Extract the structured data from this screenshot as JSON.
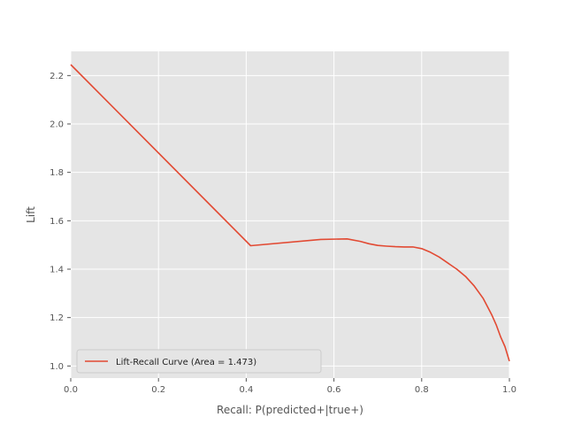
{
  "chart_data": {
    "type": "line",
    "title": "",
    "xlabel": "Recall: P(predicted+|true+)",
    "ylabel": "Lift",
    "xlim": [
      0.0,
      1.0
    ],
    "ylim": [
      0.95,
      2.3
    ],
    "xticks": [
      0.0,
      0.2,
      0.4,
      0.6,
      0.8,
      1.0
    ],
    "xtick_labels": [
      "0.0",
      "0.2",
      "0.4",
      "0.6",
      "0.8",
      "1.0"
    ],
    "yticks": [
      1.0,
      1.2,
      1.4,
      1.6,
      1.8,
      2.0,
      2.2
    ],
    "ytick_labels": [
      "1.0",
      "1.2",
      "1.4",
      "1.6",
      "1.8",
      "2.0",
      "2.2"
    ],
    "grid": true,
    "legend_position": "lower-left",
    "colors": {
      "background": "#E5E5E5",
      "grid": "#FFFFFF",
      "line": "#E24A33"
    },
    "series": [
      {
        "name": "Lift-Recall Curve  (Area = 1.473)",
        "x": [
          0.0,
          0.41,
          0.57,
          0.63,
          0.66,
          0.68,
          0.7,
          0.72,
          0.74,
          0.76,
          0.78,
          0.8,
          0.82,
          0.84,
          0.86,
          0.88,
          0.9,
          0.92,
          0.94,
          0.96,
          0.97,
          0.98,
          0.99,
          1.0
        ],
        "y": [
          2.245,
          1.497,
          1.523,
          1.525,
          1.515,
          1.505,
          1.498,
          1.495,
          1.493,
          1.492,
          1.492,
          1.485,
          1.47,
          1.45,
          1.425,
          1.4,
          1.37,
          1.33,
          1.28,
          1.21,
          1.17,
          1.12,
          1.08,
          1.02
        ]
      }
    ]
  }
}
